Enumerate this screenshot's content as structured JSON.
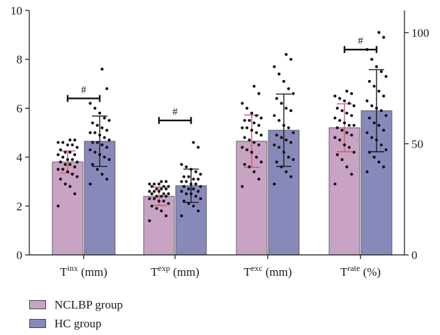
{
  "chart_data": {
    "type": "bar",
    "categories": [
      {
        "base": "T",
        "sup": "inx",
        "unit": " (mm)"
      },
      {
        "base": "T",
        "sup": "exp",
        "unit": " (mm)"
      },
      {
        "base": "T",
        "sup": "exc",
        "unit": " (mm)"
      },
      {
        "base": "T",
        "sup": "rate",
        "unit": " (%)"
      }
    ],
    "series": [
      {
        "name": "NCLBP group",
        "color": "#c8a3c4",
        "values": [
          3.8,
          2.4,
          4.65,
          5.2
        ],
        "error": [
          0.45,
          0.38,
          1.07,
          0.98
        ]
      },
      {
        "name": "HC group",
        "color": "#8889ba",
        "values": [
          4.65,
          2.83,
          5.1,
          5.9
        ],
        "error": [
          1.03,
          0.68,
          1.48,
          1.68
        ]
      }
    ],
    "points": [
      [
        [
          2.0,
          2.5,
          2.8,
          2.9,
          3.1,
          3.2,
          3.3,
          3.4,
          3.5,
          3.5,
          3.6,
          3.7,
          3.7,
          3.8,
          3.8,
          3.9,
          3.9,
          4.0,
          4.1,
          4.1,
          4.2,
          4.2,
          4.3,
          4.4,
          4.5,
          4.5,
          4.6,
          4.6,
          4.7,
          4.7
        ],
        [
          1.4,
          1.6,
          1.8,
          1.9,
          2.0,
          2.1,
          2.2,
          2.2,
          2.3,
          2.3,
          2.4,
          2.4,
          2.4,
          2.5,
          2.5,
          2.5,
          2.6,
          2.6,
          2.6,
          2.7,
          2.7,
          2.7,
          2.8,
          2.8,
          2.8,
          2.9,
          2.9,
          2.9,
          3.0,
          3.0
        ],
        [
          2.8,
          3.1,
          3.4,
          3.6,
          3.7,
          3.8,
          4.0,
          4.2,
          4.3,
          4.4,
          4.5,
          4.6,
          4.7,
          4.8,
          4.9,
          5.0,
          5.1,
          5.2,
          5.2,
          5.3,
          5.4,
          5.5,
          5.5,
          5.6,
          5.7,
          5.8,
          6.0,
          6.2,
          6.6,
          6.9
        ],
        [
          2.9,
          3.3,
          3.6,
          3.9,
          4.1,
          4.2,
          4.4,
          4.5,
          4.7,
          4.8,
          4.9,
          5.0,
          5.1,
          5.2,
          5.3,
          5.3,
          5.4,
          5.5,
          5.6,
          5.7,
          5.8,
          5.9,
          6.0,
          6.1,
          6.2,
          6.3,
          6.4,
          6.5,
          6.6,
          6.7
        ]
      ],
      [
        [
          2.9,
          3.1,
          3.3,
          3.5,
          3.7,
          3.9,
          4.0,
          4.1,
          4.2,
          4.3,
          4.4,
          4.5,
          4.6,
          4.6,
          4.7,
          4.8,
          4.9,
          5.0,
          5.0,
          5.1,
          5.2,
          5.3,
          5.4,
          5.5,
          5.6,
          5.8,
          6.0,
          6.2,
          6.8,
          7.6
        ],
        [
          1.6,
          1.8,
          2.0,
          2.1,
          2.2,
          2.3,
          2.4,
          2.5,
          2.5,
          2.6,
          2.6,
          2.7,
          2.7,
          2.8,
          2.8,
          2.9,
          2.9,
          3.0,
          3.0,
          3.1,
          3.1,
          3.2,
          3.2,
          3.3,
          3.4,
          3.5,
          3.6,
          3.7,
          4.4,
          4.6
        ],
        [
          2.9,
          3.2,
          3.4,
          3.6,
          3.8,
          3.9,
          4.0,
          4.2,
          4.4,
          4.5,
          4.6,
          4.7,
          4.8,
          4.9,
          5.0,
          5.2,
          5.3,
          5.5,
          5.7,
          5.9,
          6.0,
          6.2,
          6.4,
          6.6,
          6.8,
          7.1,
          7.4,
          7.7,
          8.0,
          8.2
        ],
        [
          3.4,
          3.6,
          3.8,
          4.0,
          4.2,
          4.3,
          4.5,
          4.7,
          4.8,
          5.0,
          5.1,
          5.3,
          5.4,
          5.6,
          5.7,
          5.9,
          6.0,
          6.1,
          6.3,
          6.5,
          6.7,
          6.9,
          7.1,
          7.3,
          7.5,
          7.7,
          8.0,
          8.4,
          8.9,
          9.1
        ]
      ]
    ],
    "significance": [
      {
        "index": 0,
        "y": 6.4,
        "label": "#"
      },
      {
        "index": 1,
        "y": 5.5,
        "label": "#"
      },
      {
        "index": 3,
        "y": 8.4,
        "label": "#"
      }
    ],
    "y_left": {
      "min": 0,
      "max": 10,
      "ticks": [
        0,
        2,
        4,
        6,
        8,
        10
      ]
    },
    "y_right": {
      "min": 0,
      "max": 110,
      "ticks": [
        0,
        50,
        100
      ]
    },
    "legend": {
      "placement": "bottom-left"
    },
    "grid": false
  }
}
